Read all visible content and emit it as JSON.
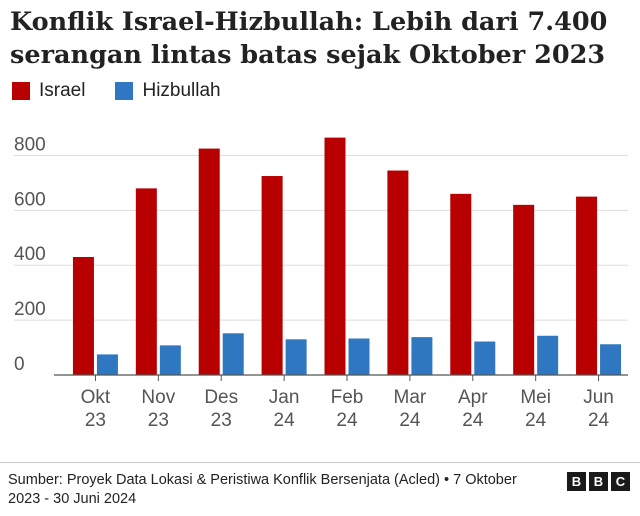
{
  "title": "Konflik Israel-Hizbullah: Lebih dari 7.400 serangan lintas batas sejak Oktober 2023",
  "source": "Sumber: Proyek Data Lokasi & Peristiwa Konflik Bersenjata (Acled) • 7 Oktober 2023 - 30 Juni 2024",
  "logo": {
    "letters": [
      "B",
      "B",
      "C"
    ]
  },
  "chart_data": {
    "type": "bar",
    "title": "Konflik Israel-Hizbullah: Lebih dari 7.400 serangan lintas batas sejak Oktober 2023",
    "xlabel": "",
    "ylabel": "",
    "categories": [
      [
        "Okt",
        "23"
      ],
      [
        "Nov",
        "23"
      ],
      [
        "Des",
        "23"
      ],
      [
        "Jan",
        "24"
      ],
      [
        "Feb",
        "24"
      ],
      [
        "Mar",
        "24"
      ],
      [
        "Apr",
        "24"
      ],
      [
        "Mei",
        "24"
      ],
      [
        "Jun",
        "24"
      ]
    ],
    "series": [
      {
        "name": "Israel",
        "color": "#b80000",
        "values": [
          430,
          680,
          825,
          725,
          865,
          745,
          660,
          620,
          650
        ]
      },
      {
        "name": "Hizbullah",
        "color": "#2f77c1",
        "values": [
          75,
          108,
          152,
          130,
          133,
          138,
          122,
          143,
          112
        ]
      }
    ],
    "ylim": [
      0,
      900
    ],
    "yticks": [
      0,
      200,
      400,
      600,
      800
    ],
    "grid": true,
    "legend_position": "top-left"
  }
}
